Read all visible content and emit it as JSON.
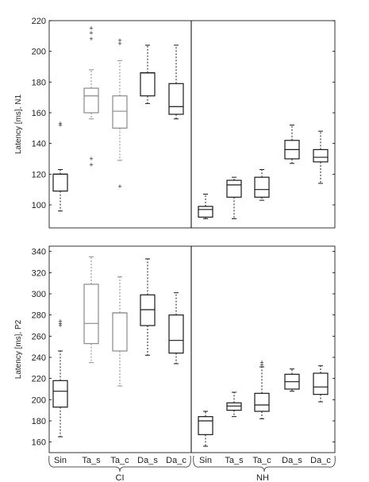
{
  "chart_data": [
    {
      "type": "boxplot",
      "ylabel": "Latency [ms], N1",
      "ylim": [
        85,
        220
      ],
      "yticks": [
        100,
        120,
        140,
        160,
        180,
        200,
        220
      ],
      "categories": [
        "Sin",
        "Ta_s",
        "Ta_c",
        "Da_s",
        "Da_c",
        "Sin",
        "Ta_s",
        "Ta_c",
        "Da_s",
        "Da_c"
      ],
      "groups": [
        "CI",
        "NH"
      ],
      "group_of_category": [
        0,
        0,
        0,
        0,
        0,
        1,
        1,
        1,
        1,
        1
      ],
      "boxes": [
        {
          "category": "Sin",
          "group": "CI",
          "whisker_low": 96,
          "q1": 109,
          "median": 120,
          "q3": 120,
          "whisker_high": 123,
          "outliers": [
            152,
            153
          ]
        },
        {
          "category": "Ta_s",
          "group": "CI",
          "whisker_low": 156,
          "q1": 160,
          "median": 171,
          "q3": 176,
          "whisker_high": 188,
          "outliers": [
            126,
            130,
            208,
            212,
            215
          ]
        },
        {
          "category": "Ta_c",
          "group": "CI",
          "whisker_low": 129,
          "q1": 150,
          "median": 161,
          "q3": 171,
          "whisker_high": 194,
          "outliers": [
            112,
            205,
            207
          ]
        },
        {
          "category": "Da_s",
          "group": "CI",
          "whisker_low": 166,
          "q1": 171,
          "median": 186,
          "q3": 186,
          "whisker_high": 204,
          "outliers": []
        },
        {
          "category": "Da_c",
          "group": "CI",
          "whisker_low": 156,
          "q1": 159,
          "median": 164,
          "q3": 179,
          "whisker_high": 204,
          "outliers": []
        },
        {
          "category": "Sin",
          "group": "NH",
          "whisker_low": 91,
          "q1": 92,
          "median": 97,
          "q3": 99,
          "whisker_high": 107,
          "outliers": []
        },
        {
          "category": "Ta_s",
          "group": "NH",
          "whisker_low": 91,
          "q1": 105,
          "median": 113,
          "q3": 116,
          "whisker_high": 118,
          "outliers": []
        },
        {
          "category": "Ta_c",
          "group": "NH",
          "whisker_low": 103,
          "q1": 105,
          "median": 110,
          "q3": 118,
          "whisker_high": 123,
          "outliers": []
        },
        {
          "category": "Da_s",
          "group": "NH",
          "whisker_low": 127,
          "q1": 130,
          "median": 136,
          "q3": 142,
          "whisker_high": 152,
          "outliers": []
        },
        {
          "category": "Da_c",
          "group": "NH",
          "whisker_low": 114,
          "q1": 128,
          "median": 131,
          "q3": 136,
          "whisker_high": 148,
          "outliers": []
        }
      ]
    },
    {
      "type": "boxplot",
      "ylabel": "Latency [ms], P2",
      "ylim": [
        150,
        345
      ],
      "yticks": [
        160,
        180,
        200,
        220,
        240,
        260,
        280,
        300,
        320,
        340
      ],
      "categories": [
        "Sin",
        "Ta_s",
        "Ta_c",
        "Da_s",
        "Da_c",
        "Sin",
        "Ta_s",
        "Ta_c",
        "Da_s",
        "Da_c"
      ],
      "groups": [
        "CI",
        "NH"
      ],
      "group_of_category": [
        0,
        0,
        0,
        0,
        0,
        1,
        1,
        1,
        1,
        1
      ],
      "boxes": [
        {
          "category": "Sin",
          "group": "CI",
          "whisker_low": 165,
          "q1": 193,
          "median": 208,
          "q3": 218,
          "whisker_high": 246,
          "outliers": [
            270,
            272,
            274
          ]
        },
        {
          "category": "Ta_s",
          "group": "CI",
          "whisker_low": 235,
          "q1": 253,
          "median": 272,
          "q3": 309,
          "whisker_high": 335,
          "outliers": []
        },
        {
          "category": "Ta_c",
          "group": "CI",
          "whisker_low": 213,
          "q1": 246,
          "median": 282,
          "q3": 282,
          "whisker_high": 316,
          "outliers": []
        },
        {
          "category": "Da_s",
          "group": "CI",
          "whisker_low": 242,
          "q1": 270,
          "median": 285,
          "q3": 299,
          "whisker_high": 333,
          "outliers": []
        },
        {
          "category": "Da_c",
          "group": "CI",
          "whisker_low": 234,
          "q1": 244,
          "median": 256,
          "q3": 280,
          "whisker_high": 301,
          "outliers": []
        },
        {
          "category": "Sin",
          "group": "NH",
          "whisker_low": 156,
          "q1": 167,
          "median": 180,
          "q3": 184,
          "whisker_high": 189,
          "outliers": []
        },
        {
          "category": "Ta_s",
          "group": "NH",
          "whisker_low": 184,
          "q1": 190,
          "median": 194,
          "q3": 197,
          "whisker_high": 207,
          "outliers": []
        },
        {
          "category": "Ta_c",
          "group": "NH",
          "whisker_low": 182,
          "q1": 189,
          "median": 195,
          "q3": 206,
          "whisker_high": 231,
          "outliers": [
            233,
            235
          ]
        },
        {
          "category": "Da_s",
          "group": "NH",
          "whisker_low": 208,
          "q1": 210,
          "median": 217,
          "q3": 224,
          "whisker_high": 229,
          "outliers": []
        },
        {
          "category": "Da_c",
          "group": "NH",
          "whisker_low": 198,
          "q1": 205,
          "median": 212,
          "q3": 225,
          "whisker_high": 232,
          "outliers": []
        }
      ]
    }
  ],
  "colors": {
    "box_dark": "#1a1a1a",
    "box_gray": "#8a8a8a",
    "axis": "#000000",
    "text": "#222222"
  }
}
